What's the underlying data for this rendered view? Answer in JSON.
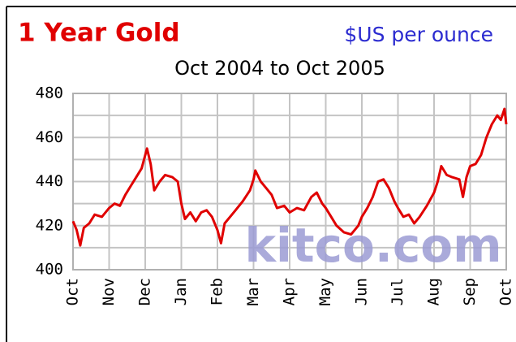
{
  "chart_data": {
    "type": "line",
    "title": "1 Year Gold",
    "unit_label": "$US per ounce",
    "subtitle": "Oct 2004 to Oct 2005",
    "watermark": "kitco.com",
    "xlim": [
      0,
      12
    ],
    "xticks": [
      {
        "value": 0,
        "label": "Oct"
      },
      {
        "value": 1,
        "label": "Nov"
      },
      {
        "value": 2,
        "label": "Dec"
      },
      {
        "value": 3,
        "label": "Jan"
      },
      {
        "value": 4,
        "label": "Feb"
      },
      {
        "value": 5,
        "label": "Mar"
      },
      {
        "value": 6,
        "label": "Apr"
      },
      {
        "value": 7,
        "label": "May"
      },
      {
        "value": 8,
        "label": "Jun"
      },
      {
        "value": 9,
        "label": "Jul"
      },
      {
        "value": 10,
        "label": "Aug"
      },
      {
        "value": 11,
        "label": "Sep"
      },
      {
        "value": 12,
        "label": "Oct"
      }
    ],
    "ylim": [
      400,
      480
    ],
    "yticks": [
      400,
      420,
      440,
      460,
      480
    ],
    "y_minor_ticks": [
      410,
      430,
      450,
      470
    ],
    "grid": true,
    "x": [
      0,
      0.1,
      0.2,
      0.3,
      0.45,
      0.6,
      0.8,
      1.0,
      1.15,
      1.3,
      1.45,
      1.6,
      1.75,
      1.9,
      2.0,
      2.05,
      2.15,
      2.25,
      2.4,
      2.55,
      2.75,
      2.9,
      3.0,
      3.1,
      3.25,
      3.4,
      3.55,
      3.7,
      3.85,
      4.0,
      4.1,
      4.2,
      4.35,
      4.5,
      4.7,
      4.9,
      5.0,
      5.05,
      5.2,
      5.35,
      5.5,
      5.65,
      5.85,
      6.0,
      6.2,
      6.4,
      6.6,
      6.75,
      6.9,
      7.0,
      7.15,
      7.3,
      7.5,
      7.7,
      7.9,
      8.0,
      8.15,
      8.3,
      8.45,
      8.6,
      8.75,
      8.9,
      9.0,
      9.15,
      9.3,
      9.45,
      9.6,
      9.8,
      10.0,
      10.1,
      10.2,
      10.35,
      10.5,
      10.7,
      10.8,
      10.9,
      11.0,
      11.15,
      11.3,
      11.45,
      11.6,
      11.75,
      11.85,
      11.95,
      12.0
    ],
    "series": [
      {
        "name": "Gold",
        "color": "#e00000",
        "values": [
          422,
          418,
          411,
          419,
          421,
          425,
          424,
          428,
          430,
          429,
          434,
          438,
          442,
          446,
          452,
          455,
          448,
          436,
          440,
          443,
          442,
          440,
          430,
          423,
          426,
          422,
          426,
          427,
          424,
          418,
          412,
          421,
          424,
          427,
          431,
          436,
          441,
          445,
          440,
          437,
          434,
          428,
          429,
          426,
          428,
          427,
          433,
          435,
          430,
          428,
          424,
          420,
          417,
          416,
          420,
          424,
          428,
          433,
          440,
          441,
          437,
          431,
          428,
          424,
          425,
          421,
          424,
          429,
          435,
          440,
          447,
          443,
          442,
          441,
          433,
          442,
          447,
          448,
          452,
          460,
          466,
          470,
          468,
          473,
          466
        ]
      }
    ]
  }
}
